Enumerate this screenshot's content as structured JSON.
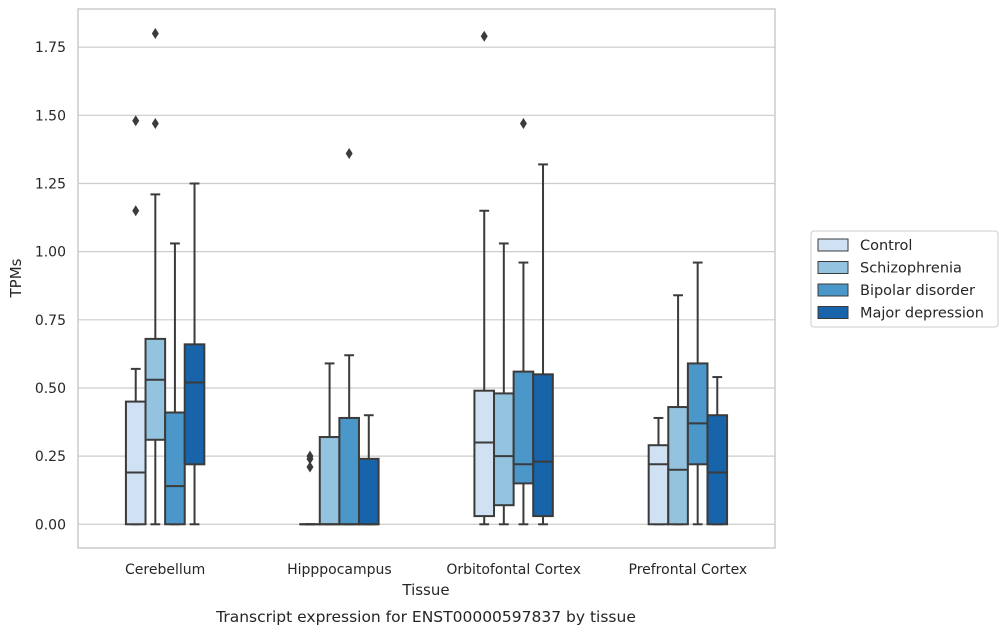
{
  "chart_data": {
    "type": "box",
    "title": "",
    "caption": "Transcript expression for ENST00000597837 by tissue",
    "xlabel": "Tissue",
    "ylabel": "TPMs",
    "ylim": [
      -0.087,
      1.89
    ],
    "yticks": [
      0.0,
      0.25,
      0.5,
      0.75,
      1.0,
      1.25,
      1.5,
      1.75
    ],
    "ytick_labels": [
      "0.00",
      "0.25",
      "0.50",
      "0.75",
      "1.00",
      "1.25",
      "1.50",
      "1.75"
    ],
    "categories": [
      "Cerebellum",
      "Hipppocampus",
      "Orbitofontal Cortex",
      "Prefrontal Cortex"
    ],
    "grid": "horizontal",
    "legend_position": "right-outside",
    "series": [
      {
        "name": "Control",
        "color": "#cfe1f2",
        "boxes": [
          {
            "q1": 0.0,
            "median": 0.19,
            "q3": 0.45,
            "whisker_low": 0.0,
            "whisker_high": 0.57,
            "outliers": [
              1.48,
              1.15
            ]
          },
          {
            "q1": 0.0,
            "median": 0.0,
            "q3": 0.0,
            "whisker_low": 0.0,
            "whisker_high": 0.0,
            "outliers": [
              0.25,
              0.24,
              0.21
            ]
          },
          {
            "q1": 0.03,
            "median": 0.3,
            "q3": 0.49,
            "whisker_low": 0.0,
            "whisker_high": 1.15,
            "outliers": [
              1.79
            ]
          },
          {
            "q1": 0.0,
            "median": 0.22,
            "q3": 0.29,
            "whisker_low": 0.0,
            "whisker_high": 0.39,
            "outliers": []
          }
        ]
      },
      {
        "name": "Schizophrenia",
        "color": "#93c3df",
        "boxes": [
          {
            "q1": 0.31,
            "median": 0.53,
            "q3": 0.68,
            "whisker_low": 0.0,
            "whisker_high": 1.21,
            "outliers": [
              1.8,
              1.47
            ]
          },
          {
            "q1": 0.0,
            "median": 0.0,
            "q3": 0.32,
            "whisker_low": 0.0,
            "whisker_high": 0.59,
            "outliers": []
          },
          {
            "q1": 0.07,
            "median": 0.25,
            "q3": 0.48,
            "whisker_low": 0.0,
            "whisker_high": 1.03,
            "outliers": []
          },
          {
            "q1": 0.0,
            "median": 0.2,
            "q3": 0.43,
            "whisker_low": 0.0,
            "whisker_high": 0.84,
            "outliers": []
          }
        ]
      },
      {
        "name": "Bipolar disorder",
        "color": "#4b97c9",
        "boxes": [
          {
            "q1": 0.0,
            "median": 0.14,
            "q3": 0.41,
            "whisker_low": 0.0,
            "whisker_high": 1.03,
            "outliers": []
          },
          {
            "q1": 0.0,
            "median": 0.0,
            "q3": 0.39,
            "whisker_low": 0.0,
            "whisker_high": 0.62,
            "outliers": [
              1.36
            ]
          },
          {
            "q1": 0.15,
            "median": 0.22,
            "q3": 0.56,
            "whisker_low": 0.0,
            "whisker_high": 0.96,
            "outliers": [
              1.47
            ]
          },
          {
            "q1": 0.22,
            "median": 0.37,
            "q3": 0.59,
            "whisker_low": 0.0,
            "whisker_high": 0.96,
            "outliers": []
          }
        ]
      },
      {
        "name": "Major depression",
        "color": "#1764ab",
        "boxes": [
          {
            "q1": 0.22,
            "median": 0.52,
            "q3": 0.66,
            "whisker_low": 0.0,
            "whisker_high": 1.25,
            "outliers": []
          },
          {
            "q1": 0.0,
            "median": 0.0,
            "q3": 0.24,
            "whisker_low": 0.0,
            "whisker_high": 0.4,
            "outliers": []
          },
          {
            "q1": 0.03,
            "median": 0.23,
            "q3": 0.55,
            "whisker_low": 0.0,
            "whisker_high": 1.32,
            "outliers": []
          },
          {
            "q1": 0.0,
            "median": 0.19,
            "q3": 0.4,
            "whisker_low": 0.0,
            "whisker_high": 0.54,
            "outliers": []
          }
        ]
      }
    ]
  }
}
